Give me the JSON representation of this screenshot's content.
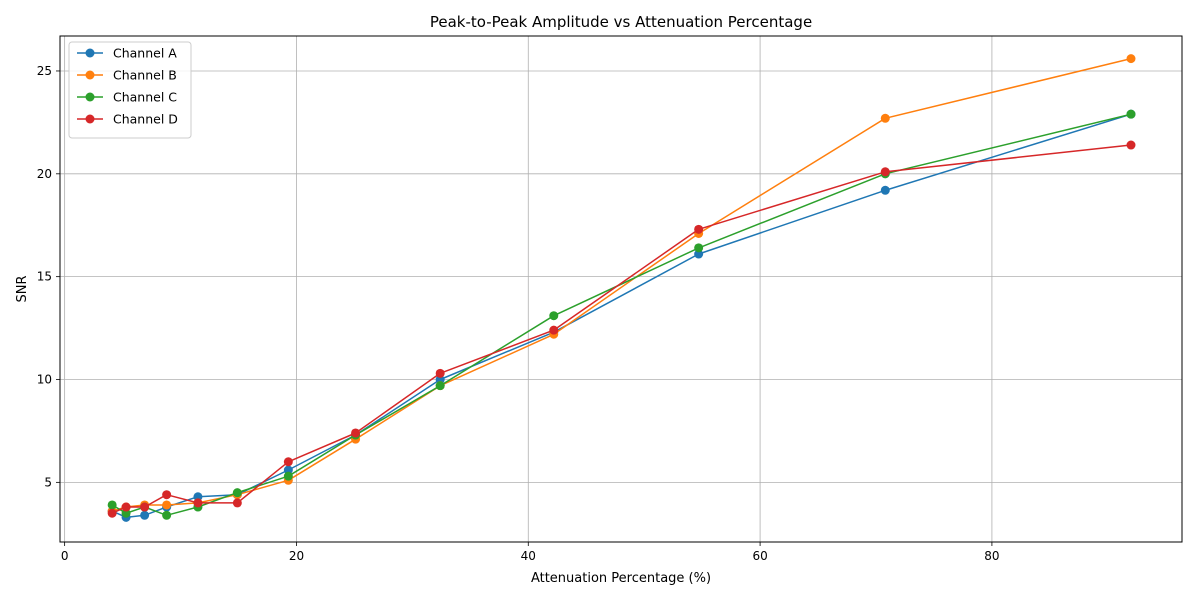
{
  "chart_data": {
    "type": "line",
    "title": "Peak-to-Peak Amplitude vs Attenuation Percentage",
    "xlabel": "Attenuation Percentage (%)",
    "ylabel": "SNR",
    "xlim": [
      -0.4,
      96.4
    ],
    "ylim": [
      2.1,
      26.7
    ],
    "xticks": [
      0,
      20,
      40,
      60,
      80
    ],
    "yticks": [
      5,
      10,
      15,
      20,
      25
    ],
    "grid": true,
    "legend_position": "upper-left",
    "x": [
      4.1,
      5.3,
      6.9,
      8.8,
      11.5,
      14.9,
      19.3,
      25.1,
      32.4,
      42.2,
      54.7,
      70.8,
      92.0
    ],
    "series": [
      {
        "name": "Channel A",
        "color": "#1f77b4",
        "values": [
          3.6,
          3.3,
          3.4,
          3.8,
          4.3,
          4.4,
          5.6,
          7.3,
          10.0,
          12.3,
          16.1,
          19.2,
          22.9
        ]
      },
      {
        "name": "Channel B",
        "color": "#ff7f0e",
        "values": [
          3.6,
          3.8,
          3.9,
          3.9,
          4.0,
          4.4,
          5.1,
          7.1,
          9.7,
          12.2,
          17.1,
          22.7,
          25.6
        ]
      },
      {
        "name": "Channel C",
        "color": "#2ca02c",
        "values": [
          3.9,
          3.5,
          3.8,
          3.4,
          3.8,
          4.5,
          5.3,
          7.3,
          9.7,
          13.1,
          16.4,
          20.0,
          22.9
        ]
      },
      {
        "name": "Channel D",
        "color": "#d62728",
        "values": [
          3.5,
          3.8,
          3.8,
          4.4,
          4.0,
          4.0,
          6.0,
          7.4,
          10.3,
          12.4,
          17.3,
          20.1,
          21.4
        ]
      }
    ]
  }
}
